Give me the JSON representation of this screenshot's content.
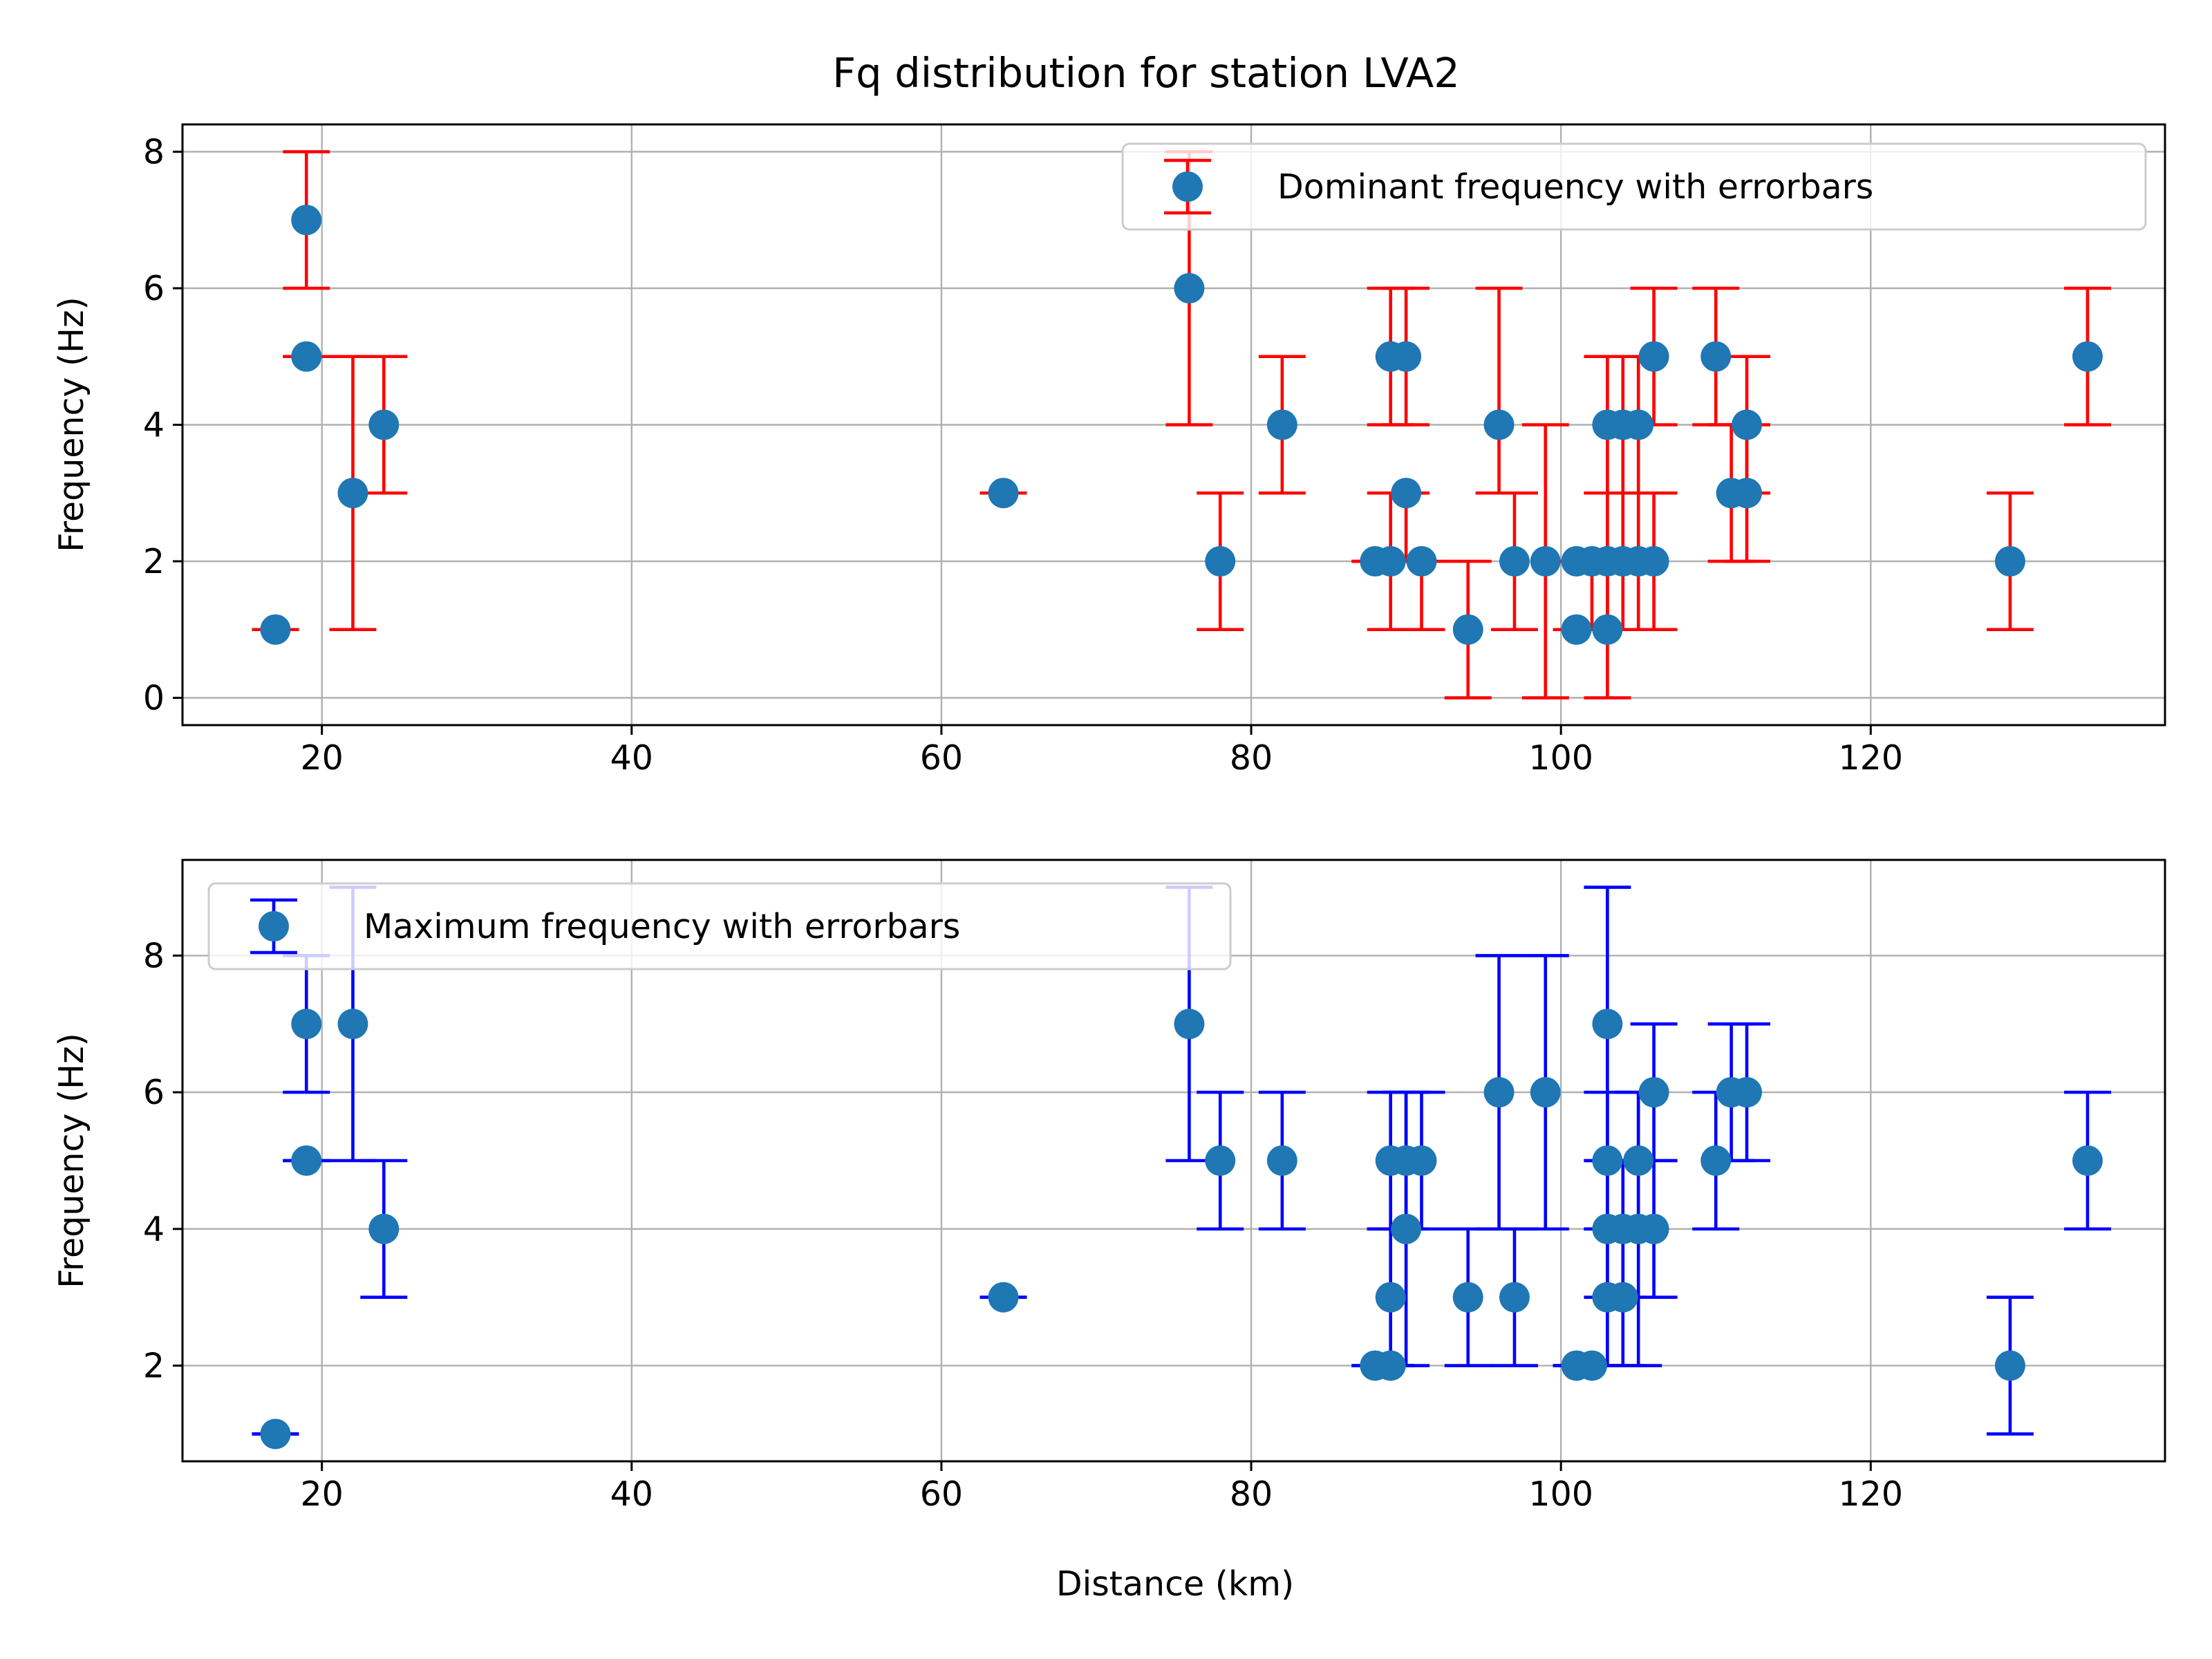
{
  "chart_data": {
    "title": "Fq distribution for station LVA2",
    "xlabel": "Distance (km)",
    "xlim": [
      11,
      139
    ],
    "x_ticks": [
      "20",
      "40",
      "60",
      "80",
      "100",
      "120"
    ],
    "x_tick_values": [
      20,
      40,
      60,
      80,
      100,
      120
    ],
    "panels": [
      {
        "type": "scatter",
        "ylabel": "Frequency (Hz)",
        "ylim": [
          -0.4,
          8.4
        ],
        "y_ticks": [
          "0",
          "2",
          "4",
          "6",
          "8"
        ],
        "y_tick_values": [
          0,
          2,
          4,
          6,
          8
        ],
        "grid": true,
        "legend_position": "upper-right",
        "marker_color": "#1f77b4",
        "errorbar_color": "#ff0000",
        "series": [
          {
            "name": "Dominant frequency with errorbars",
            "points": [
              {
                "x": 17,
                "y": 1,
                "ylo": 1,
                "yhi": 1
              },
              {
                "x": 19,
                "y": 7,
                "ylo": 6,
                "yhi": 8
              },
              {
                "x": 19,
                "y": 5,
                "ylo": 5,
                "yhi": 5
              },
              {
                "x": 22,
                "y": 3,
                "ylo": 1,
                "yhi": 5
              },
              {
                "x": 24,
                "y": 4,
                "ylo": 3,
                "yhi": 5
              },
              {
                "x": 64,
                "y": 3,
                "ylo": 3,
                "yhi": 3
              },
              {
                "x": 76,
                "y": 6,
                "ylo": 4,
                "yhi": 8
              },
              {
                "x": 78,
                "y": 2,
                "ylo": 1,
                "yhi": 3
              },
              {
                "x": 82,
                "y": 4,
                "ylo": 3,
                "yhi": 5
              },
              {
                "x": 88,
                "y": 2,
                "ylo": 2,
                "yhi": 2
              },
              {
                "x": 89,
                "y": 5,
                "ylo": 4,
                "yhi": 6
              },
              {
                "x": 89,
                "y": 2,
                "ylo": 1,
                "yhi": 3
              },
              {
                "x": 90,
                "y": 5,
                "ylo": 4,
                "yhi": 6
              },
              {
                "x": 90,
                "y": 3,
                "ylo": 2,
                "yhi": 3
              },
              {
                "x": 91,
                "y": 2,
                "ylo": 1,
                "yhi": 2
              },
              {
                "x": 94,
                "y": 1,
                "ylo": 0,
                "yhi": 2
              },
              {
                "x": 96,
                "y": 4,
                "ylo": 3,
                "yhi": 6
              },
              {
                "x": 97,
                "y": 2,
                "ylo": 1,
                "yhi": 3
              },
              {
                "x": 99,
                "y": 2,
                "ylo": 0,
                "yhi": 4
              },
              {
                "x": 101,
                "y": 2,
                "ylo": 2,
                "yhi": 2
              },
              {
                "x": 101,
                "y": 1,
                "ylo": 1,
                "yhi": 1
              },
              {
                "x": 102,
                "y": 2,
                "ylo": 1,
                "yhi": 2
              },
              {
                "x": 103,
                "y": 4,
                "ylo": 3,
                "yhi": 5
              },
              {
                "x": 103,
                "y": 2,
                "ylo": 1,
                "yhi": 3
              },
              {
                "x": 103,
                "y": 1,
                "ylo": 0,
                "yhi": 2
              },
              {
                "x": 104,
                "y": 4,
                "ylo": 3,
                "yhi": 5
              },
              {
                "x": 104,
                "y": 2,
                "ylo": 1,
                "yhi": 3
              },
              {
                "x": 105,
                "y": 4,
                "ylo": 3,
                "yhi": 5
              },
              {
                "x": 105,
                "y": 2,
                "ylo": 1,
                "yhi": 3
              },
              {
                "x": 106,
                "y": 5,
                "ylo": 4,
                "yhi": 6
              },
              {
                "x": 106,
                "y": 2,
                "ylo": 1,
                "yhi": 3
              },
              {
                "x": 110,
                "y": 5,
                "ylo": 4,
                "yhi": 6
              },
              {
                "x": 111,
                "y": 3,
                "ylo": 2,
                "yhi": 4
              },
              {
                "x": 112,
                "y": 4,
                "ylo": 3,
                "yhi": 5
              },
              {
                "x": 112,
                "y": 3,
                "ylo": 2,
                "yhi": 4
              },
              {
                "x": 129,
                "y": 2,
                "ylo": 1,
                "yhi": 3
              },
              {
                "x": 134,
                "y": 5,
                "ylo": 4,
                "yhi": 6
              }
            ]
          }
        ]
      },
      {
        "type": "scatter",
        "ylabel": "Frequency (Hz)",
        "ylim": [
          0.6,
          9.4
        ],
        "y_ticks": [
          "2",
          "4",
          "6",
          "8"
        ],
        "y_tick_values": [
          2,
          4,
          6,
          8
        ],
        "grid": true,
        "legend_position": "upper-left",
        "marker_color": "#1f77b4",
        "errorbar_color": "#0000ff",
        "series": [
          {
            "name": "Maximum frequency with errorbars",
            "points": [
              {
                "x": 17,
                "y": 1,
                "ylo": 1,
                "yhi": 1
              },
              {
                "x": 19,
                "y": 7,
                "ylo": 6,
                "yhi": 8
              },
              {
                "x": 19,
                "y": 5,
                "ylo": 5,
                "yhi": 5
              },
              {
                "x": 22,
                "y": 7,
                "ylo": 5,
                "yhi": 9
              },
              {
                "x": 24,
                "y": 4,
                "ylo": 3,
                "yhi": 5
              },
              {
                "x": 64,
                "y": 3,
                "ylo": 3,
                "yhi": 3
              },
              {
                "x": 76,
                "y": 7,
                "ylo": 5,
                "yhi": 9
              },
              {
                "x": 78,
                "y": 5,
                "ylo": 4,
                "yhi": 6
              },
              {
                "x": 82,
                "y": 5,
                "ylo": 4,
                "yhi": 6
              },
              {
                "x": 88,
                "y": 2,
                "ylo": 2,
                "yhi": 2
              },
              {
                "x": 89,
                "y": 5,
                "ylo": 4,
                "yhi": 6
              },
              {
                "x": 89,
                "y": 3,
                "ylo": 2,
                "yhi": 4
              },
              {
                "x": 89,
                "y": 2,
                "ylo": 2,
                "yhi": 2
              },
              {
                "x": 90,
                "y": 5,
                "ylo": 4,
                "yhi": 6
              },
              {
                "x": 90,
                "y": 4,
                "ylo": 2,
                "yhi": 6
              },
              {
                "x": 91,
                "y": 5,
                "ylo": 4,
                "yhi": 6
              },
              {
                "x": 94,
                "y": 3,
                "ylo": 2,
                "yhi": 4
              },
              {
                "x": 96,
                "y": 6,
                "ylo": 4,
                "yhi": 8
              },
              {
                "x": 97,
                "y": 3,
                "ylo": 2,
                "yhi": 4
              },
              {
                "x": 99,
                "y": 6,
                "ylo": 4,
                "yhi": 8
              },
              {
                "x": 101,
                "y": 2,
                "ylo": 2,
                "yhi": 2
              },
              {
                "x": 102,
                "y": 2,
                "ylo": 2,
                "yhi": 2
              },
              {
                "x": 103,
                "y": 7,
                "ylo": 5,
                "yhi": 9
              },
              {
                "x": 103,
                "y": 5,
                "ylo": 4,
                "yhi": 6
              },
              {
                "x": 103,
                "y": 4,
                "ylo": 3,
                "yhi": 5
              },
              {
                "x": 103,
                "y": 3,
                "ylo": 2,
                "yhi": 4
              },
              {
                "x": 104,
                "y": 4,
                "ylo": 3,
                "yhi": 5
              },
              {
                "x": 104,
                "y": 3,
                "ylo": 2,
                "yhi": 4
              },
              {
                "x": 105,
                "y": 5,
                "ylo": 4,
                "yhi": 6
              },
              {
                "x": 105,
                "y": 4,
                "ylo": 2,
                "yhi": 6
              },
              {
                "x": 106,
                "y": 6,
                "ylo": 5,
                "yhi": 7
              },
              {
                "x": 106,
                "y": 4,
                "ylo": 3,
                "yhi": 5
              },
              {
                "x": 110,
                "y": 5,
                "ylo": 4,
                "yhi": 6
              },
              {
                "x": 111,
                "y": 6,
                "ylo": 5,
                "yhi": 7
              },
              {
                "x": 112,
                "y": 6,
                "ylo": 5,
                "yhi": 7
              },
              {
                "x": 129,
                "y": 2,
                "ylo": 1,
                "yhi": 3
              },
              {
                "x": 134,
                "y": 5,
                "ylo": 4,
                "yhi": 6
              }
            ]
          }
        ]
      }
    ]
  }
}
